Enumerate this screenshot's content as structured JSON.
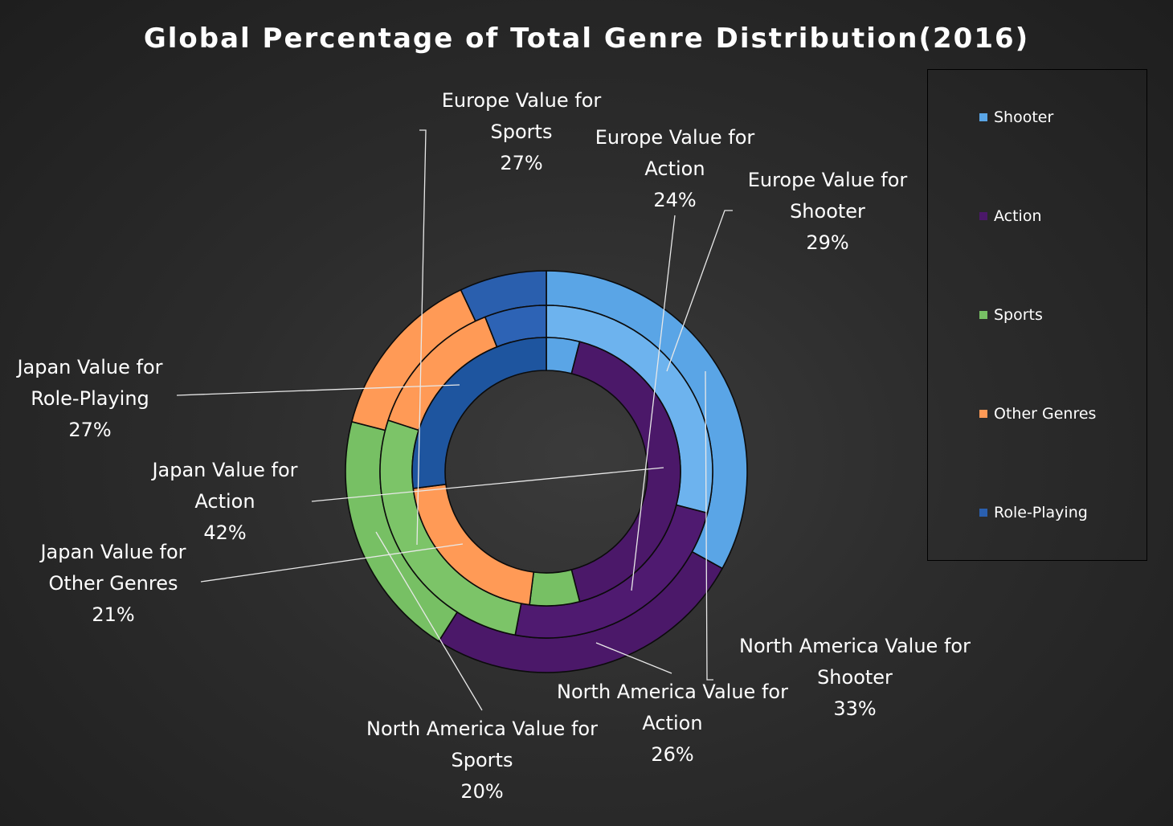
{
  "chart_data": {
    "type": "doughnut",
    "title": "Global Percentage of Total Genre Distribution(2016)",
    "categories": [
      "Shooter",
      "Action",
      "Sports",
      "Other Genres",
      "Role-Playing"
    ],
    "colors": {
      "Shooter": "#5aa5e6",
      "Action": "#4b1869",
      "Sports": "#77c064",
      "Other Genres": "#ff9a56",
      "Role-Playing": "#2a5fae"
    },
    "series": [
      {
        "name": "North America",
        "ring": "outer",
        "values": [
          33,
          26,
          20,
          14,
          7
        ]
      },
      {
        "name": "Europe",
        "ring": "middle",
        "values": [
          29,
          24,
          27,
          14,
          6
        ]
      },
      {
        "name": "Japan",
        "ring": "inner",
        "values": [
          4,
          42,
          6,
          21,
          27
        ]
      }
    ],
    "legend_position": "right"
  },
  "annotations": [
    {
      "id": "eu-sports",
      "lines": [
        "Europe Value for",
        "Sports",
        "27%"
      ]
    },
    {
      "id": "eu-action",
      "lines": [
        "Europe Value for",
        "Action",
        "24%"
      ]
    },
    {
      "id": "eu-shooter",
      "lines": [
        "Europe Value for",
        "Shooter",
        "29%"
      ]
    },
    {
      "id": "jp-rpg",
      "lines": [
        "Japan Value for",
        "Role-Playing",
        "27%"
      ]
    },
    {
      "id": "jp-action",
      "lines": [
        "Japan Value for",
        "Action",
        "42%"
      ]
    },
    {
      "id": "jp-other",
      "lines": [
        "Japan Value for",
        "Other Genres",
        "21%"
      ]
    },
    {
      "id": "na-sports",
      "lines": [
        "North America Value for",
        "Sports",
        "20%"
      ]
    },
    {
      "id": "na-action",
      "lines": [
        "North America Value for",
        "Action",
        "26%"
      ]
    },
    {
      "id": "na-shooter",
      "lines": [
        "North America Value for",
        "Shooter",
        "33%"
      ]
    }
  ]
}
